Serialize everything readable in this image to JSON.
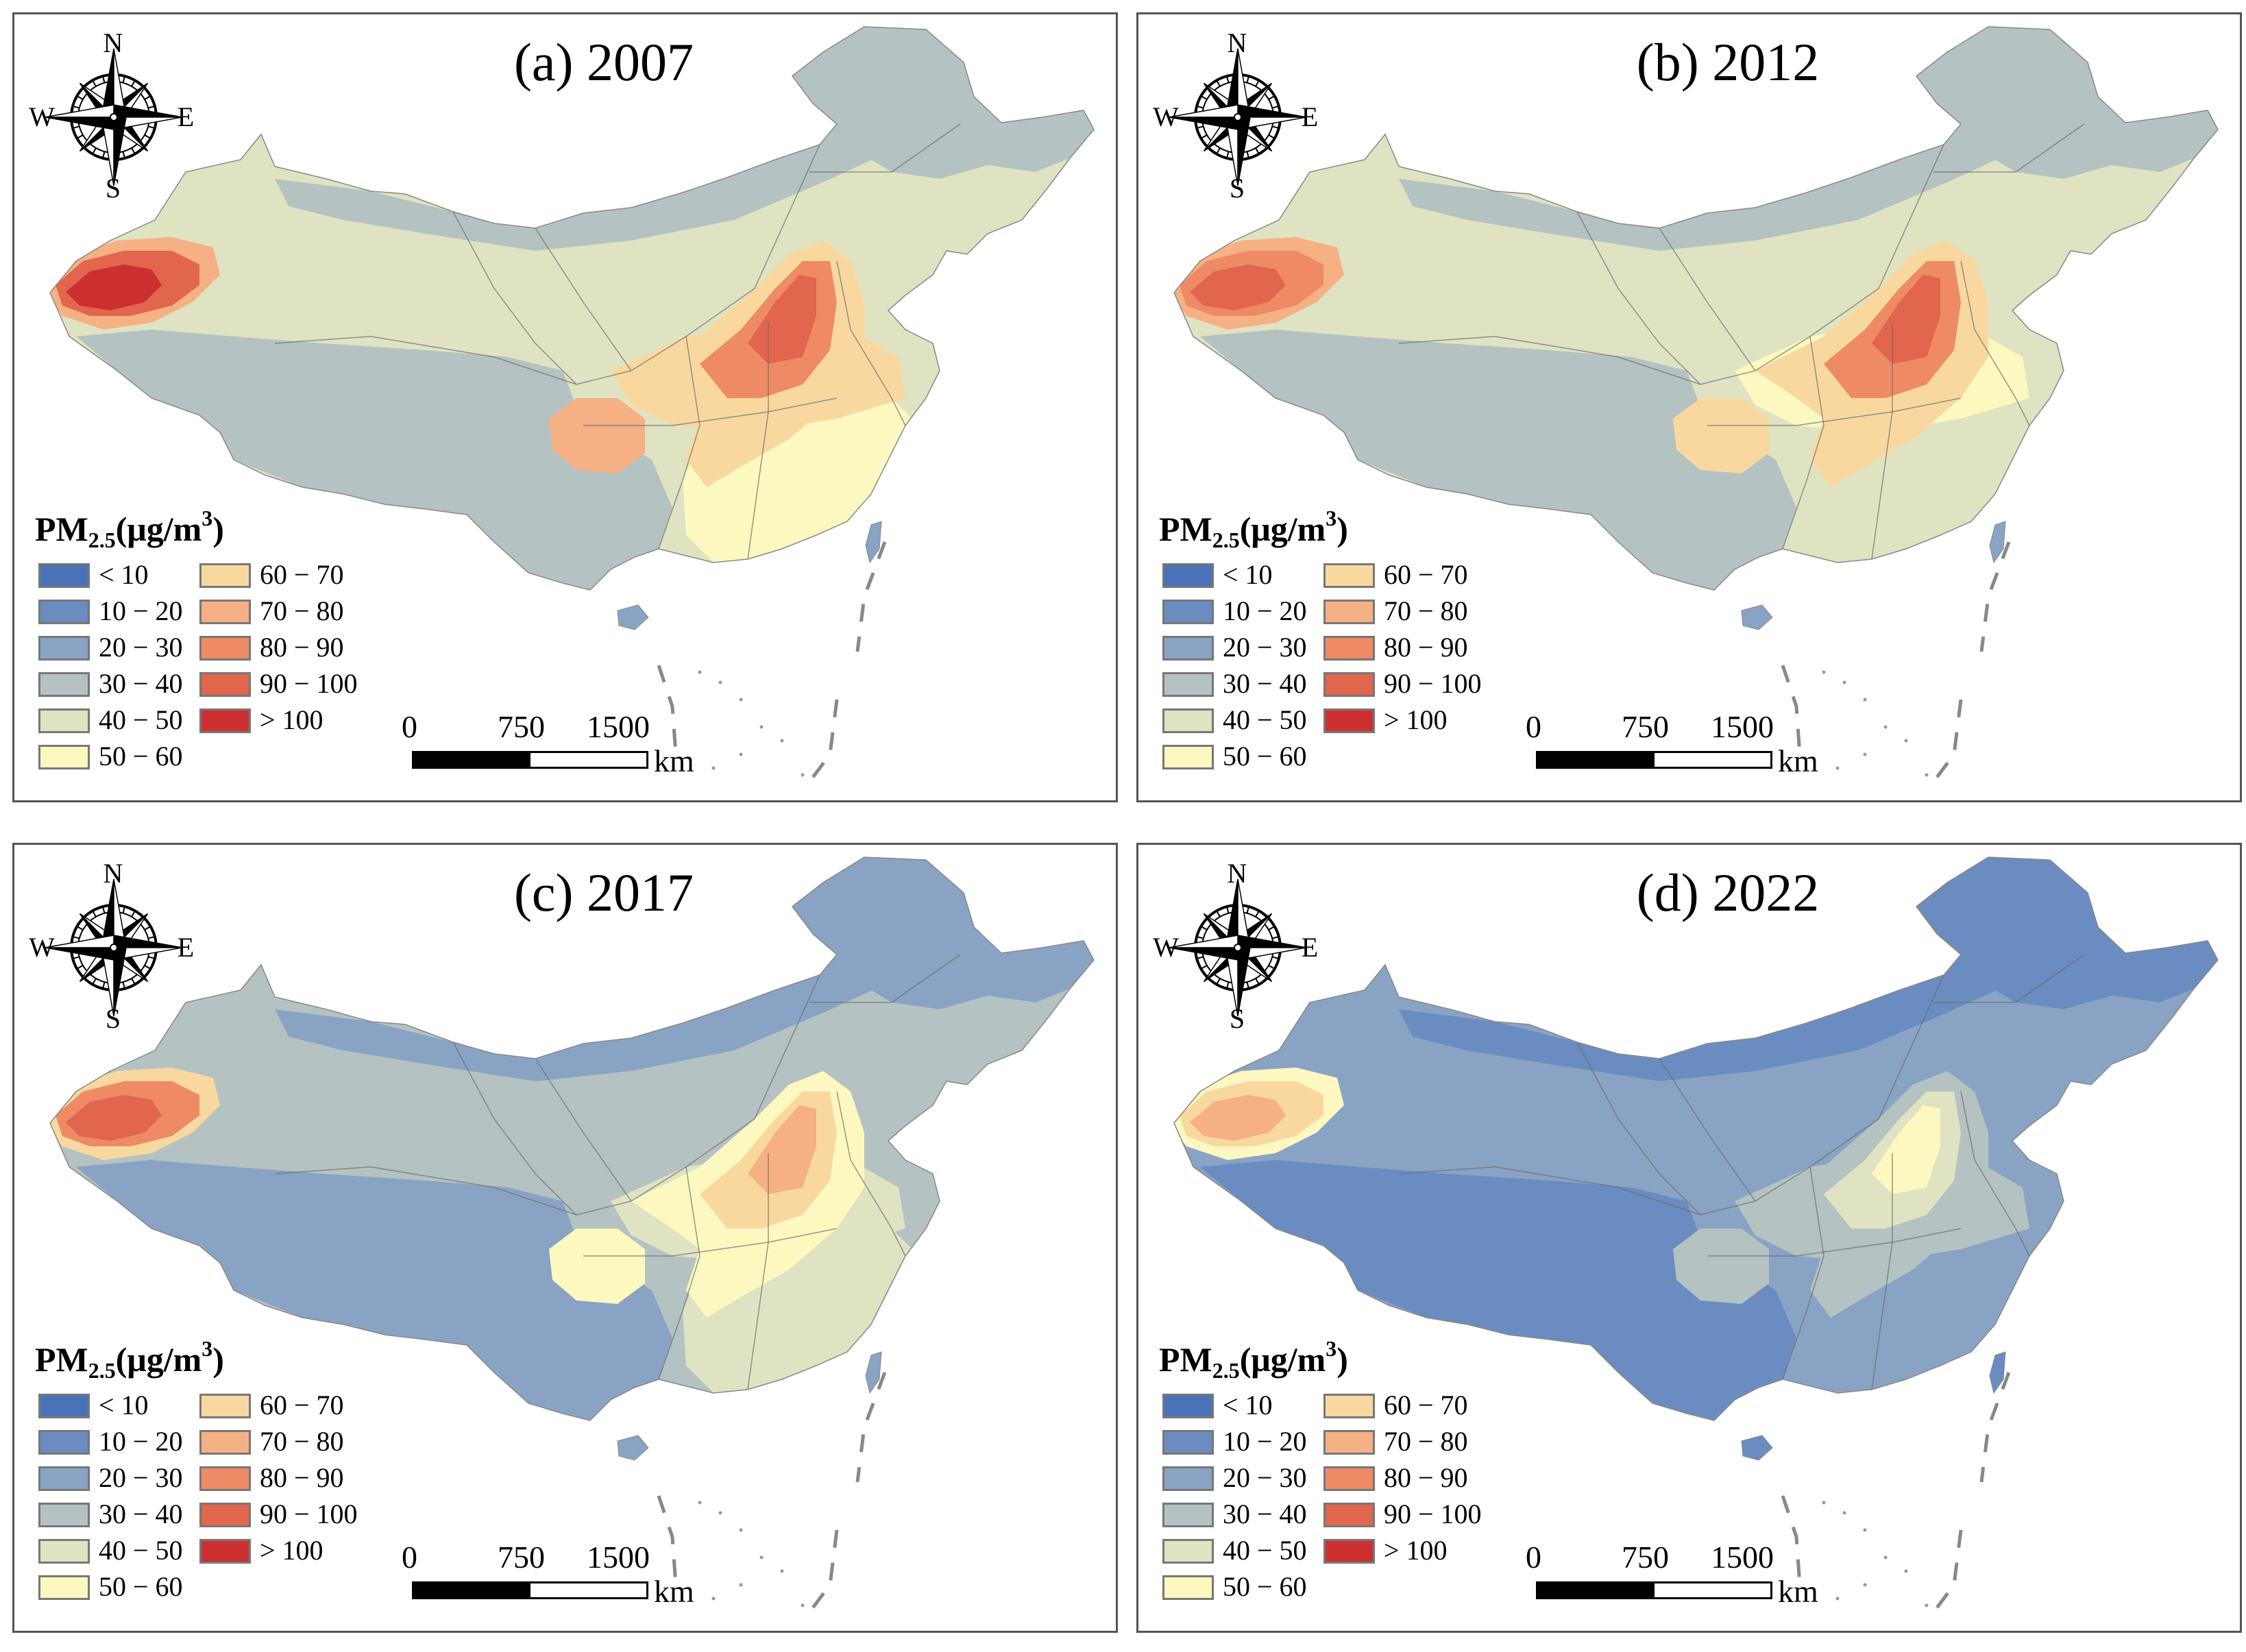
{
  "legend": {
    "title_main": "PM",
    "title_sub": "2.5",
    "title_unit_open": "(μg/m",
    "title_unit_sup": "3",
    "title_unit_close": ")",
    "classes": [
      {
        "label": "< 10",
        "color": "#4a72b8"
      },
      {
        "label": "10 − 20",
        "color": "#6a8cc0"
      },
      {
        "label": "20 − 30",
        "color": "#89a3c4"
      },
      {
        "label": "30 − 40",
        "color": "#b4c3c1"
      },
      {
        "label": "40 − 50",
        "color": "#dfe3c2"
      },
      {
        "label": "50 − 60",
        "color": "#fdf8bf"
      },
      {
        "label": "60 − 70",
        "color": "#f9d8a0"
      },
      {
        "label": "70 − 80",
        "color": "#f5b084"
      },
      {
        "label": "80 − 90",
        "color": "#ee8a65"
      },
      {
        "label": "90 − 100",
        "color": "#e2654d"
      },
      {
        "label": "> 100",
        "color": "#cd3030"
      }
    ]
  },
  "compass": {
    "n": "N",
    "s": "S",
    "w": "W",
    "e": "E"
  },
  "scale": {
    "t0": "0",
    "t1": "750",
    "t2": "1500",
    "unit": "km"
  },
  "panels": [
    {
      "title": "(a) 2007",
      "base": "#dfe3c2",
      "north": "#b4c3c1",
      "northeast": "#b4c3c1",
      "tibet": "#b4c3c1",
      "southeast": "#fdf8bf",
      "southwest": "#b4c3c1",
      "tarim": [
        "#f5b084",
        "#e2654d",
        "#cd3030"
      ],
      "plain": [
        "#f9d8a0",
        "#ee8a65",
        "#e2654d"
      ],
      "sichuan": "#f5b084",
      "central": "#f9d8a0",
      "taiwan": "#89a3c4",
      "hainan": "#89a3c4"
    },
    {
      "title": "(b) 2012",
      "base": "#dfe3c2",
      "north": "#b4c3c1",
      "northeast": "#b4c3c1",
      "tibet": "#b4c3c1",
      "southeast": "#dfe3c2",
      "southwest": "#b4c3c1",
      "tarim": [
        "#f5b084",
        "#ee8a65",
        "#e2654d"
      ],
      "plain": [
        "#f9d8a0",
        "#ee8a65",
        "#e2654d"
      ],
      "sichuan": "#f9d8a0",
      "central": "#fdf8bf",
      "taiwan": "#89a3c4",
      "hainan": "#89a3c4"
    },
    {
      "title": "(c) 2017",
      "base": "#b4c3c1",
      "north": "#89a3c4",
      "northeast": "#89a3c4",
      "tibet": "#89a3c4",
      "southeast": "#dfe3c2",
      "southwest": "#89a3c4",
      "tarim": [
        "#f9d8a0",
        "#ee8a65",
        "#e2654d"
      ],
      "plain": [
        "#fdf8bf",
        "#f9d8a0",
        "#f5b084"
      ],
      "sichuan": "#fdf8bf",
      "central": "#dfe3c2",
      "taiwan": "#89a3c4",
      "hainan": "#89a3c4"
    },
    {
      "title": "(d) 2022",
      "base": "#89a3c4",
      "north": "#6a8cc0",
      "northeast": "#6a8cc0",
      "tibet": "#6a8cc0",
      "southeast": "#89a3c4",
      "southwest": "#6a8cc0",
      "tarim": [
        "#fdf8bf",
        "#f9d8a0",
        "#f5b084"
      ],
      "plain": [
        "#b4c3c1",
        "#dfe3c2",
        "#fdf8bf"
      ],
      "sichuan": "#b4c3c1",
      "central": "#b4c3c1",
      "taiwan": "#6a8cc0",
      "hainan": "#6a8cc0"
    }
  ]
}
